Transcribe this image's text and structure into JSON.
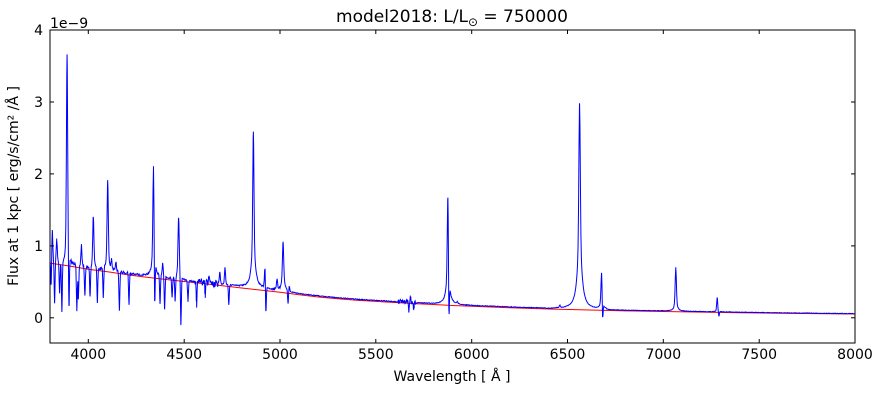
{
  "figure": {
    "title": {
      "prefix": "model2018: L/L",
      "sub": "⊙",
      "suffix": " = 750000"
    },
    "xlabel": "Wavelength [ Å ]",
    "ylabel": "Flux at 1 kpc [ erg/s/cm² /Å ]",
    "offset_text": "1e−9"
  },
  "chart_data": {
    "type": "line",
    "title": "model2018: L/L⊙ = 750000",
    "xlabel": "Wavelength [ Å ]",
    "ylabel": "Flux at 1 kpc [ erg/s/cm² /Å ]",
    "y_offset_label": "1e−9",
    "y_unit_scale": 1e-09,
    "xlim": [
      3800,
      8000
    ],
    "ylim": [
      -0.35,
      4.0
    ],
    "xticks": [
      4000,
      4500,
      5000,
      5500,
      6000,
      6500,
      7000,
      7500,
      8000
    ],
    "yticks": [
      0,
      1,
      2,
      3,
      4
    ],
    "grid": false,
    "legend": false,
    "series": [
      {
        "name": "blue-spectrum",
        "color": "#0000ff"
      },
      {
        "name": "red-continuum",
        "color": "#ff0000"
      }
    ],
    "continuum": [
      [
        3800,
        0.76
      ],
      [
        3900,
        0.72
      ],
      [
        4000,
        0.675
      ],
      [
        4100,
        0.64
      ],
      [
        4200,
        0.6
      ],
      [
        4300,
        0.565
      ],
      [
        4400,
        0.535
      ],
      [
        4500,
        0.505
      ],
      [
        4600,
        0.475
      ],
      [
        4700,
        0.445
      ],
      [
        4800,
        0.415
      ],
      [
        4900,
        0.385
      ],
      [
        5000,
        0.355
      ],
      [
        5100,
        0.32
      ],
      [
        5200,
        0.29
      ],
      [
        5300,
        0.265
      ],
      [
        5400,
        0.245
      ],
      [
        5500,
        0.228
      ],
      [
        5600,
        0.212
      ],
      [
        5700,
        0.198
      ],
      [
        5800,
        0.185
      ],
      [
        5900,
        0.172
      ],
      [
        6000,
        0.16
      ],
      [
        6100,
        0.15
      ],
      [
        6200,
        0.14
      ],
      [
        6300,
        0.131
      ],
      [
        6400,
        0.123
      ],
      [
        6563,
        0.112
      ],
      [
        6700,
        0.103
      ],
      [
        6800,
        0.097
      ],
      [
        7000,
        0.088
      ],
      [
        7200,
        0.079
      ],
      [
        7400,
        0.071
      ],
      [
        7600,
        0.064
      ],
      [
        7800,
        0.058
      ],
      [
        8000,
        0.053
      ]
    ],
    "blue_offset": [
      0.02,
      0.005
    ],
    "emission_lines": [
      {
        "wl": 3812,
        "peak": 1.2,
        "sigma": 2.5,
        "gamma": 6,
        "wing": 0.15
      },
      {
        "wl": 3835,
        "peak": 1.08,
        "sigma": 2.5,
        "gamma": 6,
        "wing": 0.15
      },
      {
        "wl": 3889,
        "peak": 3.67,
        "sigma": 3,
        "gamma": 8,
        "wing": 0.15
      },
      {
        "wl": 3927,
        "peak": 0.72,
        "sigma": 2.5,
        "gamma": 6,
        "wing": 0.15
      },
      {
        "wl": 3964,
        "peak": 1.0,
        "sigma": 2.5,
        "gamma": 6,
        "wing": 0.15
      },
      {
        "wl": 4026,
        "peak": 1.41,
        "sigma": 3,
        "gamma": 7,
        "wing": 0.18
      },
      {
        "wl": 4101,
        "peak": 1.9,
        "sigma": 3,
        "gamma": 8,
        "wing": 0.2
      },
      {
        "wl": 4121,
        "peak": 0.78,
        "sigma": 2.5,
        "gamma": 6,
        "wing": 0.15
      },
      {
        "wl": 4144,
        "peak": 0.76,
        "sigma": 2.5,
        "gamma": 6,
        "wing": 0.15
      },
      {
        "wl": 4340,
        "peak": 2.12,
        "sigma": 3,
        "gamma": 9,
        "wing": 0.25
      },
      {
        "wl": 4388,
        "peak": 0.75,
        "sigma": 2.5,
        "gamma": 6,
        "wing": 0.15
      },
      {
        "wl": 4471,
        "peak": 1.4,
        "sigma": 3,
        "gamma": 8,
        "wing": 0.2
      },
      {
        "wl": 4630,
        "peak": 0.58,
        "sigma": 2.5,
        "gamma": 6,
        "wing": 0.15
      },
      {
        "wl": 4686,
        "peak": 0.63,
        "sigma": 2.5,
        "gamma": 6,
        "wing": 0.15
      },
      {
        "wl": 4713,
        "peak": 0.7,
        "sigma": 2.5,
        "gamma": 6,
        "wing": 0.15
      },
      {
        "wl": 4861,
        "peak": 2.58,
        "sigma": 3,
        "gamma": 11,
        "wing": 0.3
      },
      {
        "wl": 4922,
        "peak": 0.74,
        "sigma": 2.5,
        "gamma": 6,
        "wing": 0.15
      },
      {
        "wl": 4985,
        "peak": 0.52,
        "sigma": 2.5,
        "gamma": 6,
        "wing": 0.15
      },
      {
        "wl": 5016,
        "peak": 1.06,
        "sigma": 3,
        "gamma": 10,
        "wing": 0.3
      },
      {
        "wl": 5048,
        "peak": 0.42,
        "sigma": 2.5,
        "gamma": 6,
        "wing": 0.15
      },
      {
        "wl": 5411,
        "peak": 0.25,
        "sigma": 2.5,
        "gamma": 6,
        "wing": 0.15
      },
      {
        "wl": 5680,
        "peak": 0.28,
        "sigma": 2.5,
        "gamma": 6,
        "wing": 0.15
      },
      {
        "wl": 5876,
        "peak": 1.72,
        "sigma": 3,
        "gamma": 10,
        "wing": 0.3
      },
      {
        "wl": 5925,
        "peak": 0.21,
        "sigma": 2.5,
        "gamma": 6,
        "wing": 0.15
      },
      {
        "wl": 6460,
        "peak": 0.16,
        "sigma": 2.5,
        "gamma": 6,
        "wing": 0.15
      },
      {
        "wl": 6563,
        "peak": 2.98,
        "sigma": 3.5,
        "gamma": 13,
        "wing": 0.35
      },
      {
        "wl": 6678,
        "peak": 0.63,
        "sigma": 3,
        "gamma": 8,
        "wing": 0.25
      },
      {
        "wl": 7065,
        "peak": 0.7,
        "sigma": 3,
        "gamma": 8,
        "wing": 0.25
      },
      {
        "wl": 7281,
        "peak": 0.28,
        "sigma": 2.5,
        "gamma": 6,
        "wing": 0.15
      }
    ],
    "absorption_lines": [
      {
        "wl": 3806,
        "floor": 0.45
      },
      {
        "wl": 3824,
        "floor": 0.22
      },
      {
        "wl": 3850,
        "floor": 0.33
      },
      {
        "wl": 3862,
        "floor": 0.1
      },
      {
        "wl": 3899,
        "floor": 0.15
      },
      {
        "wl": 3940,
        "floor": 0.1
      },
      {
        "wl": 3948,
        "floor": 0.25
      },
      {
        "wl": 3982,
        "floor": 0.3
      },
      {
        "wl": 4009,
        "floor": 0.28
      },
      {
        "wl": 4047,
        "floor": 0.22
      },
      {
        "wl": 4078,
        "floor": 0.28
      },
      {
        "wl": 4162,
        "floor": 0.11
      },
      {
        "wl": 4212,
        "floor": 0.19
      },
      {
        "wl": 4346,
        "floor": 0.23
      },
      {
        "wl": 4374,
        "floor": 0.2
      },
      {
        "wl": 4398,
        "floor": 0.12
      },
      {
        "wl": 4437,
        "floor": 0.28
      },
      {
        "wl": 4453,
        "floor": 0.23
      },
      {
        "wl": 4483,
        "floor": -0.1
      },
      {
        "wl": 4520,
        "floor": 0.23
      },
      {
        "wl": 4565,
        "floor": 0.17
      },
      {
        "wl": 4610,
        "floor": 0.3
      },
      {
        "wl": 4733,
        "floor": 0.18
      },
      {
        "wl": 4926,
        "floor": 0.09
      },
      {
        "wl": 5042,
        "floor": 0.2
      },
      {
        "wl": 5672,
        "floor": 0.1
      },
      {
        "wl": 5698,
        "floor": 0.12
      },
      {
        "wl": 5881,
        "floor": 0.11
      },
      {
        "wl": 6683,
        "floor": 0.01
      },
      {
        "wl": 7290,
        "floor": 0.02
      }
    ],
    "noise_regions": [
      {
        "from": 3800,
        "to": 4230,
        "amp": 0.022
      },
      {
        "from": 4230,
        "to": 4555,
        "amp": 0.012
      },
      {
        "from": 4555,
        "to": 4680,
        "amp": 0.05
      },
      {
        "from": 4680,
        "to": 4960,
        "amp": 0.009
      },
      {
        "from": 4960,
        "to": 5005,
        "amp": 0.03
      },
      {
        "from": 5005,
        "to": 5615,
        "amp": 0.006
      },
      {
        "from": 5615,
        "to": 5710,
        "amp": 0.035
      },
      {
        "from": 5710,
        "to": 6500,
        "amp": 0.005
      },
      {
        "from": 6500,
        "to": 8000,
        "amp": 0.0035
      }
    ]
  }
}
